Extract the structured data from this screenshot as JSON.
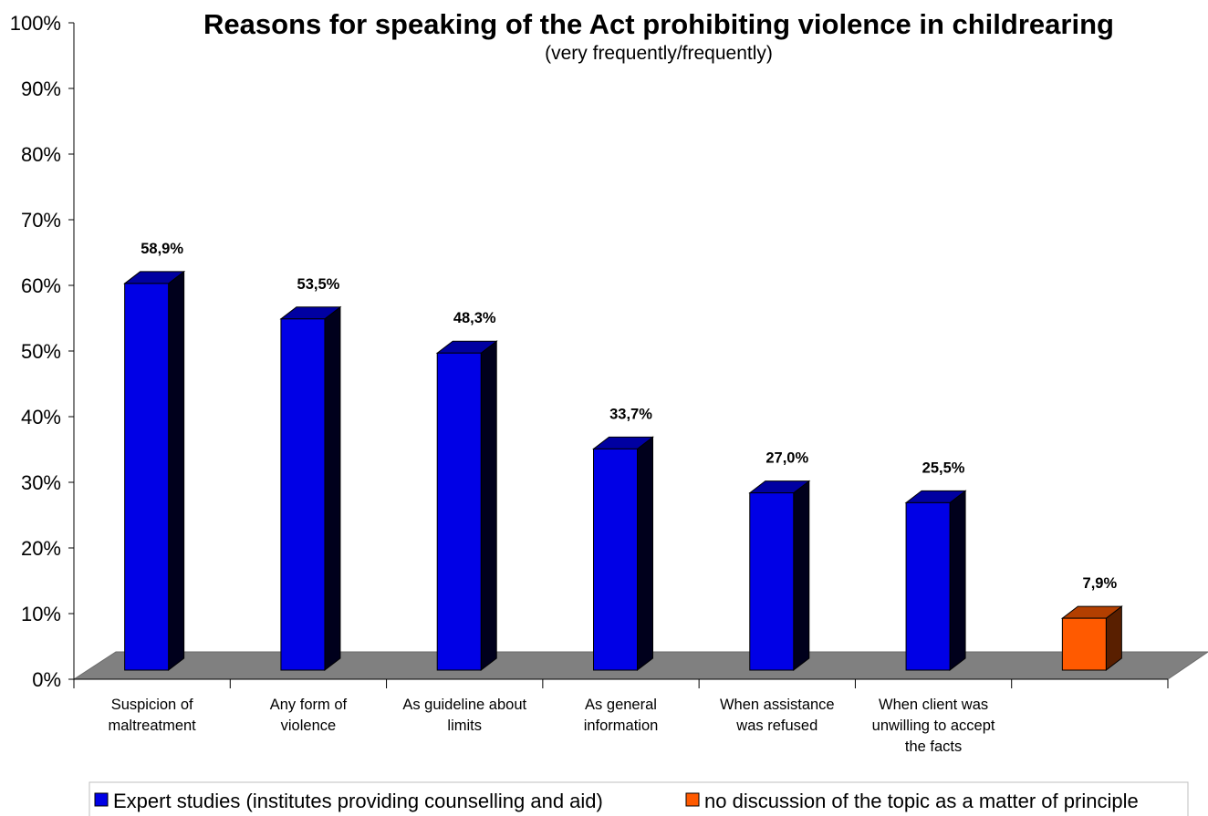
{
  "chart_data": {
    "type": "bar",
    "title": "Reasons for speaking of the Act prohibiting violence in childrearing",
    "subtitle": "(very frequently/frequently)",
    "ylim": [
      0,
      100
    ],
    "yticks": [
      "0%",
      "10%",
      "20%",
      "30%",
      "40%",
      "50%",
      "60%",
      "70%",
      "80%",
      "90%",
      "100%"
    ],
    "categories": [
      [
        "Suspicion of",
        "maltreatment"
      ],
      [
        "Any form of",
        "violence"
      ],
      [
        "As guideline about",
        "limits"
      ],
      [
        "As general",
        "information"
      ],
      [
        "When assistance",
        "was refused"
      ],
      [
        "When client was",
        "unwilling to accept",
        "the facts"
      ],
      [
        ""
      ]
    ],
    "series": [
      {
        "name": "Expert studies (institutes providing counselling and aid)",
        "color": "#0000e6",
        "values": [
          58.9,
          53.5,
          48.3,
          33.7,
          27.0,
          25.5,
          null
        ],
        "labels": [
          "58,9%",
          "53,5%",
          "48,3%",
          "33,7%",
          "27,0%",
          "25,5%",
          null
        ]
      },
      {
        "name": "no discussion of the topic as a matter of principle",
        "color": "#ff5a00",
        "values": [
          null,
          null,
          null,
          null,
          null,
          null,
          7.9
        ],
        "labels": [
          null,
          null,
          null,
          null,
          null,
          null,
          "7,9%"
        ]
      }
    ],
    "grid": false,
    "style": "3d-column",
    "legend_position": "bottom"
  }
}
